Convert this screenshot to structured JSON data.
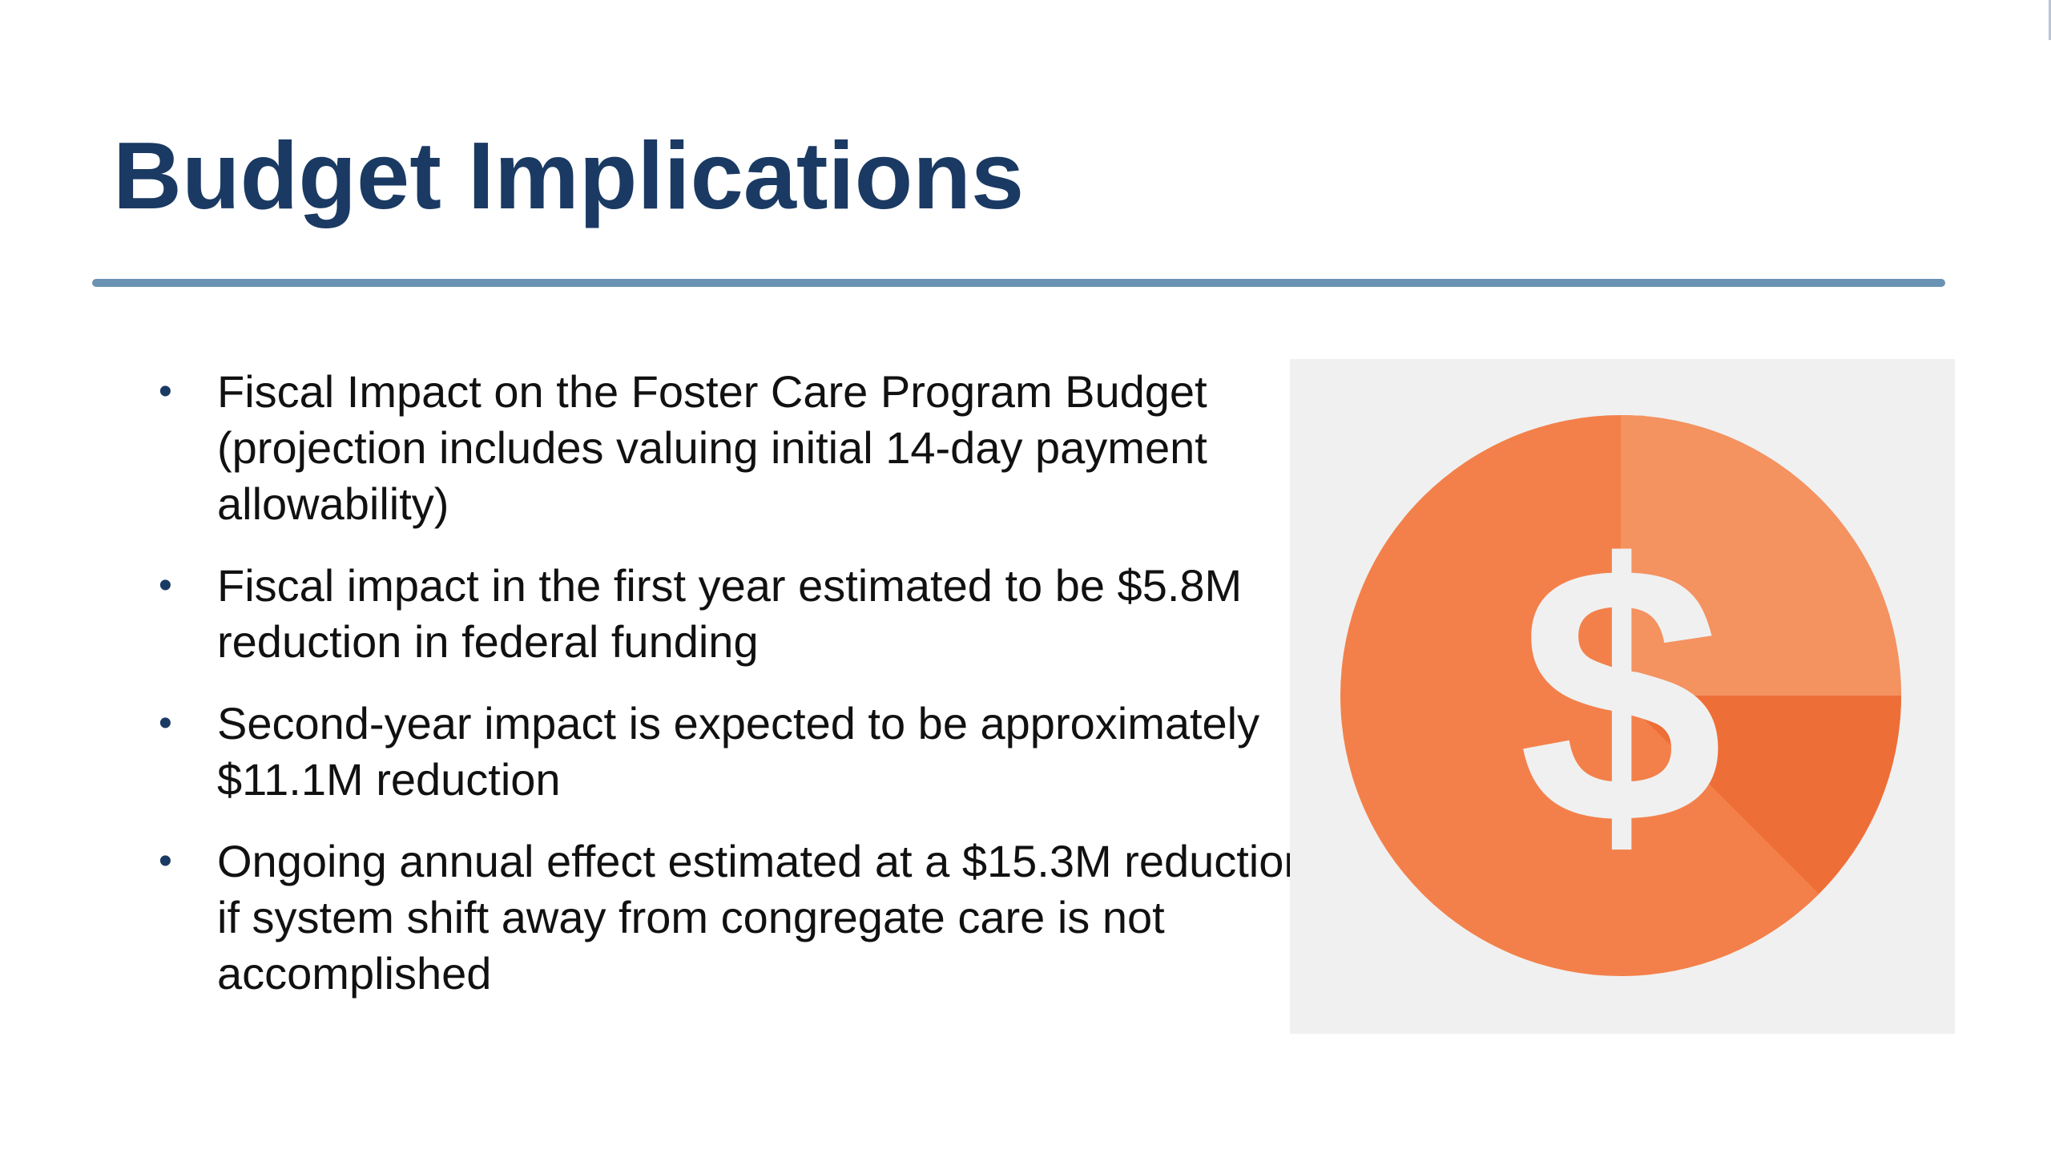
{
  "slide": {
    "title": "Budget Implications",
    "bullets": [
      "Fiscal Impact on the Foster Care Program Budget (projection includes valuing initial 14-day payment allowability)",
      "Fiscal impact in the first year estimated to be $5.8M reduction in federal funding",
      "Second-year impact is expected to be approximately $11.1M reduction",
      "Ongoing annual effect estimated at a $15.3M reduction if system shift away from congregate care is not accomplished"
    ],
    "bullet_glyph": "•",
    "image": {
      "icon": "dollar-coin-icon",
      "symbol": "$",
      "colors": {
        "panel_bg": "#f0f0f0",
        "coin_main": "#f3804a",
        "coin_light": "#f49260",
        "coin_dark": "#ee6e37",
        "symbol": "#f0f0f0"
      }
    },
    "colors": {
      "title": "#1a3a63",
      "rule": "#6a93b3",
      "text": "#111111"
    }
  }
}
